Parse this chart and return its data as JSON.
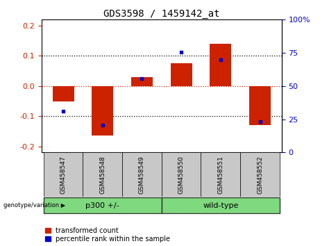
{
  "title": "GDS3598 / 1459142_at",
  "samples": [
    "GSM458547",
    "GSM458548",
    "GSM458549",
    "GSM458550",
    "GSM458551",
    "GSM458552"
  ],
  "red_bars": [
    -0.05,
    -0.163,
    0.03,
    0.075,
    0.14,
    -0.13
  ],
  "blue_dots_y": [
    -0.082,
    -0.13,
    0.025,
    0.113,
    0.088,
    -0.118
  ],
  "groups": [
    {
      "label": "p300 +/-",
      "start": 0,
      "end": 3
    },
    {
      "label": "wild-type",
      "start": 3,
      "end": 6
    }
  ],
  "group_label": "genotype/variation",
  "ylim": [
    -0.22,
    0.22
  ],
  "yticks_left": [
    -0.2,
    -0.1,
    0.0,
    0.1,
    0.2
  ],
  "yticks_right_pct": [
    0,
    25,
    50,
    75,
    100
  ],
  "red_color": "#CC2200",
  "blue_color": "#0000CC",
  "bar_width": 0.55,
  "background_color": "#ffffff",
  "green_color": "#7FD97F",
  "gray_color": "#C8C8C8",
  "legend_red": "transformed count",
  "legend_blue": "percentile rank within the sample"
}
